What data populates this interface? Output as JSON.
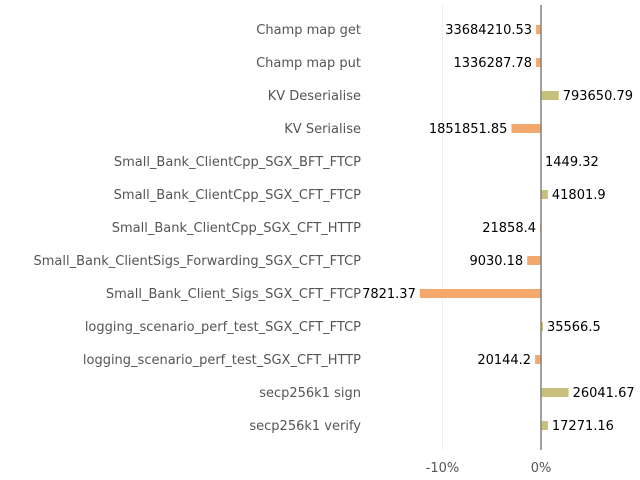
{
  "chart_data": {
    "type": "bar",
    "orientation": "horizontal",
    "categories": [
      "Champ map get",
      "Champ map put",
      "KV Deserialise",
      "KV Serialise",
      "Small_Bank_ClientCpp_SGX_BFT_FTCP",
      "Small_Bank_ClientCpp_SGX_CFT_FTCP",
      "Small_Bank_ClientCpp_SGX_CFT_HTTP",
      "Small_Bank_ClientSigs_Forwarding_SGX_CFT_FTCP",
      "Small_Bank_Client_Sigs_SGX_CFT_FTCP",
      "logging_scenario_perf_test_SGX_CFT_FTCP",
      "logging_scenario_perf_test_SGX_CFT_HTTP",
      "secp256k1 sign",
      "secp256k1 verify"
    ],
    "values": [
      -0.5,
      -0.5,
      1.8,
      -3.0,
      0.0,
      0.7,
      -0.1,
      -1.4,
      -12.3,
      0.2,
      -0.6,
      2.8,
      0.7
    ],
    "value_labels": [
      "33684210.53",
      "1336287.78",
      "793650.79",
      "1851851.85",
      "1449.32",
      "41801.9",
      "21858.4",
      "9030.18",
      "7821.37",
      "35566.5",
      "20144.2",
      "26041.67",
      "17271.16"
    ],
    "xlim": [
      -15,
      10
    ],
    "x_ticks": [
      -10,
      0
    ],
    "x_tick_labels": [
      "-10%",
      "0%"
    ],
    "colors": {
      "positive": "#c8bf7c",
      "negative": "#f4a86c",
      "zero_line": "#808080",
      "grid": "#eeeeee"
    }
  }
}
